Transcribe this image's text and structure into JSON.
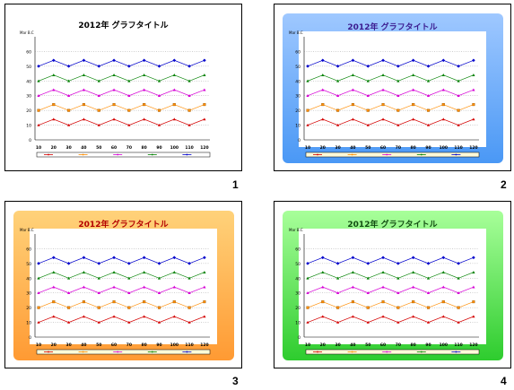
{
  "slides": [
    {
      "title": "2012年 グラフタイトル",
      "number": "1",
      "style": "plain",
      "title_color": "#000000"
    },
    {
      "title": "2012年 グラフタイトル",
      "number": "2",
      "style": "blue",
      "title_color": "#3b1b8f"
    },
    {
      "title": "2012年 グラフタイトル",
      "number": "3",
      "style": "orange",
      "title_color": "#b30000"
    },
    {
      "title": "2012年 グラフタイトル",
      "number": "4",
      "style": "green",
      "title_color": "#124d12"
    }
  ],
  "chart_data": {
    "type": "line",
    "x": [
      "10",
      "20",
      "30",
      "40",
      "50",
      "60",
      "70",
      "80",
      "90",
      "100",
      "110",
      "120"
    ],
    "ylim": [
      0,
      70
    ],
    "yticks": [
      "0",
      "10",
      "20",
      "30",
      "40",
      "50",
      "60"
    ],
    "ylabel": "Mar\nB.C",
    "series": [
      {
        "color": "#d40000",
        "values": [
          10,
          14,
          10,
          14,
          10,
          14,
          10,
          14,
          10,
          14,
          10,
          14
        ]
      },
      {
        "color": "#ff8c00",
        "values": [
          20,
          24,
          20,
          24,
          20,
          24,
          20,
          24,
          20,
          24,
          20,
          24
        ]
      },
      {
        "color": "#d600d6",
        "values": [
          30,
          34,
          30,
          34,
          30,
          34,
          30,
          34,
          30,
          34,
          30,
          34
        ]
      },
      {
        "color": "#008000",
        "values": [
          40,
          44,
          40,
          44,
          40,
          44,
          40,
          44,
          40,
          44,
          40,
          44
        ]
      },
      {
        "color": "#0000cc",
        "values": [
          50,
          54,
          50,
          54,
          50,
          54,
          50,
          54,
          50,
          54,
          50,
          54
        ]
      }
    ]
  }
}
